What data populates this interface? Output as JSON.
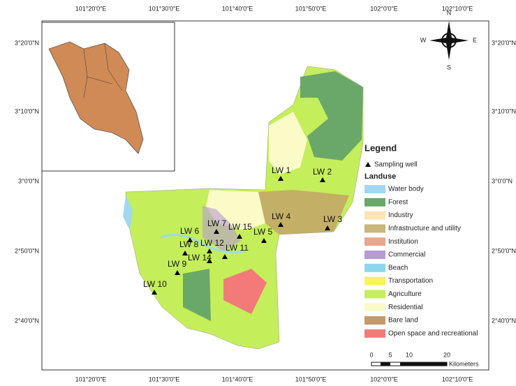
{
  "coords": {
    "top": [
      "101°20'0\"E",
      "101°30'0\"E",
      "101°40'0\"E",
      "101°50'0\"E",
      "102°0'0\"E",
      "102°10'0\"E"
    ],
    "left": [
      "3°20'0\"N",
      "3°10'0\"N",
      "3°0'0\"N",
      "2°50'0\"N",
      "2°40'0\"N"
    ]
  },
  "compass": {
    "n": "N",
    "s": "S",
    "e": "E",
    "w": "W"
  },
  "wells": [
    "LW 1",
    "LW 2",
    "LW 3",
    "LW 4",
    "LW 5",
    "LW 6",
    "LW 7",
    "LW 8",
    "LW 9",
    "LW 10",
    "LW 11",
    "LW 12",
    "LW 14",
    "LW 15"
  ],
  "legend": {
    "title": "Legend",
    "well": "Sampling well",
    "subtitle": "Landuse",
    "items": [
      {
        "name": "Water body",
        "color": "#9fd8ef"
      },
      {
        "name": "Forest",
        "color": "#6aa86a"
      },
      {
        "name": "Industry",
        "color": "#fde3b6"
      },
      {
        "name": "Infrastructure and utility",
        "color": "#c8b67a"
      },
      {
        "name": "Institution",
        "color": "#e8a590"
      },
      {
        "name": "Commercial",
        "color": "#b79ad6"
      },
      {
        "name": "Beach",
        "color": "#8ed6ee"
      },
      {
        "name": "Transportation",
        "color": "#f7f35a"
      },
      {
        "name": "Agriculture",
        "color": "#c4ee5a"
      },
      {
        "name": "Residential",
        "color": "#fbfbc8"
      },
      {
        "name": "Bare land",
        "color": "#c49a6c"
      },
      {
        "name": "Open space and recreational",
        "color": "#f47a7a"
      }
    ]
  },
  "scale": {
    "labels": [
      "0",
      "5",
      "10",
      "20"
    ],
    "unit": "Kilometers"
  }
}
